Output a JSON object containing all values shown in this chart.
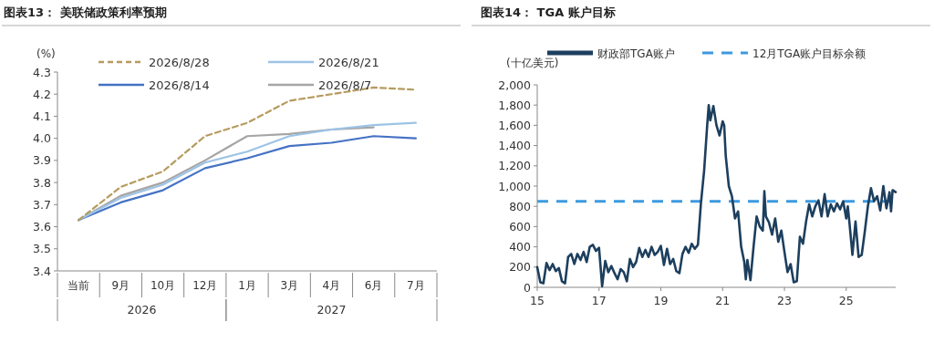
{
  "chart_data": [
    {
      "type": "line",
      "title": "图表13：  美联储政策利率预期",
      "ylabel": "(%)",
      "categories": [
        "当前",
        "9月",
        "10月",
        "12月",
        "1月",
        "3月",
        "4月",
        "6月",
        "7月"
      ],
      "annotations": [
        "2026",
        "2027"
      ],
      "series": [
        {
          "name": "2026/8/28",
          "color": "#b59b5e",
          "line_style": "dashed",
          "values": [
            3.63,
            3.78,
            3.85,
            4.01,
            4.07,
            4.17,
            4.2,
            4.23,
            4.22
          ]
        },
        {
          "name": "2026/8/21",
          "color": "#9dc3e6",
          "values": [
            3.63,
            3.73,
            3.79,
            3.89,
            3.94,
            4.01,
            4.04,
            4.06,
            4.07
          ]
        },
        {
          "name": "2026/8/14",
          "color": "#4472c4",
          "values": [
            3.63,
            3.71,
            3.765,
            3.865,
            3.91,
            3.965,
            3.98,
            4.01,
            4.0
          ]
        },
        {
          "name": "2026/8/7",
          "color": "#a5a5a5",
          "values": [
            3.63,
            3.74,
            3.8,
            3.9,
            4.01,
            4.02,
            4.04,
            4.05,
            null
          ]
        }
      ],
      "ylim": [
        3.4,
        4.3
      ],
      "yticks": [
        3.4,
        3.5,
        3.6,
        3.7,
        3.8,
        3.9,
        {
          "value": 4.0,
          "label": "4.0"
        },
        4.1,
        4.2,
        4.3
      ],
      "legend": "top"
    },
    {
      "type": "line",
      "title": "图表14：  TGA 账户目标",
      "ylabel": "(十亿美元)",
      "x": [
        2015.0,
        2015.1,
        2015.2,
        2015.3,
        2015.4,
        2015.5,
        2015.6,
        2015.7,
        2015.8,
        2015.9,
        2016.0,
        2016.1,
        2016.2,
        2016.3,
        2016.4,
        2016.5,
        2016.6,
        2016.7,
        2016.8,
        2016.9,
        2017.0,
        2017.1,
        2017.2,
        2017.3,
        2017.4,
        2017.5,
        2017.6,
        2017.7,
        2017.8,
        2017.9,
        2018.0,
        2018.1,
        2018.2,
        2018.3,
        2018.4,
        2018.5,
        2018.6,
        2018.7,
        2018.8,
        2018.9,
        2019.0,
        2019.1,
        2019.2,
        2019.3,
        2019.4,
        2019.5,
        2019.6,
        2019.7,
        2019.8,
        2019.9,
        2020.0,
        2020.1,
        2020.2,
        2020.3,
        2020.4,
        2020.5,
        2020.55,
        2020.6,
        2020.7,
        2020.8,
        2020.9,
        2021.0,
        2021.05,
        2021.1,
        2021.2,
        2021.3,
        2021.4,
        2021.5,
        2021.6,
        2021.7,
        2021.75,
        2021.8,
        2021.9,
        2022.0,
        2022.1,
        2022.2,
        2022.3,
        2022.35,
        2022.4,
        2022.5,
        2022.6,
        2022.7,
        2022.8,
        2022.9,
        2023.0,
        2023.1,
        2023.2,
        2023.3,
        2023.4,
        2023.5,
        2023.6,
        2023.7,
        2023.8,
        2023.9,
        2024.0,
        2024.1,
        2024.2,
        2024.3,
        2024.4,
        2024.5,
        2024.6,
        2024.7,
        2024.8,
        2024.9,
        2025.0,
        2025.05,
        2025.1,
        2025.2,
        2025.3,
        2025.4,
        2025.5,
        2025.6,
        2025.7,
        2025.8,
        2025.9,
        2026.0,
        2026.1,
        2026.2,
        2026.3,
        2026.4,
        2026.45,
        2026.5,
        2026.6
      ],
      "series": [
        {
          "name": "财政部TGA账户",
          "color": "#1d3f5e",
          "values": [
            200,
            50,
            40,
            240,
            170,
            230,
            160,
            190,
            60,
            40,
            300,
            330,
            230,
            330,
            270,
            350,
            250,
            400,
            420,
            360,
            390,
            10,
            260,
            150,
            210,
            140,
            80,
            180,
            150,
            60,
            280,
            200,
            250,
            390,
            300,
            370,
            300,
            400,
            320,
            350,
            410,
            220,
            380,
            230,
            280,
            160,
            140,
            330,
            400,
            340,
            430,
            380,
            420,
            840,
            1150,
            1600,
            1800,
            1650,
            1790,
            1600,
            1500,
            1640,
            1600,
            1300,
            1000,
            900,
            680,
            750,
            400,
            250,
            80,
            270,
            70,
            400,
            700,
            600,
            560,
            950,
            700,
            640,
            520,
            680,
            450,
            560,
            350,
            150,
            230,
            50,
            60,
            500,
            430,
            650,
            820,
            700,
            800,
            860,
            700,
            920,
            700,
            820,
            750,
            830,
            770,
            850,
            680,
            800,
            650,
            320,
            650,
            300,
            320,
            550,
            800,
            980,
            850,
            900,
            760,
            1000,
            780,
            940,
            750,
            960,
            940
          ]
        }
      ],
      "ref_lines": [
        {
          "axis": "y",
          "value": 850,
          "label": "12月TGA账户目标余额",
          "color": "#3d9ae0",
          "line_style": "dashed"
        }
      ],
      "xlim": [
        2015,
        2026.6
      ],
      "xticks": [
        {
          "value": 2015,
          "label": "15"
        },
        {
          "value": 2017,
          "label": "17"
        },
        {
          "value": 2019,
          "label": "19"
        },
        {
          "value": 2021,
          "label": "21"
        },
        {
          "value": 2023,
          "label": "23"
        },
        {
          "value": 2025,
          "label": "25"
        }
      ],
      "ylim": [
        0,
        2000
      ],
      "yticks": [
        0,
        200,
        400,
        600,
        800,
        {
          "value": 1000,
          "label": "1,000"
        },
        {
          "value": 1200,
          "label": "1,200"
        },
        {
          "value": 1400,
          "label": "1,400"
        },
        {
          "value": 1600,
          "label": "1,600"
        },
        {
          "value": 1800,
          "label": "1,800"
        },
        {
          "value": 2000,
          "label": "2,000"
        }
      ],
      "legend": "top"
    }
  ]
}
